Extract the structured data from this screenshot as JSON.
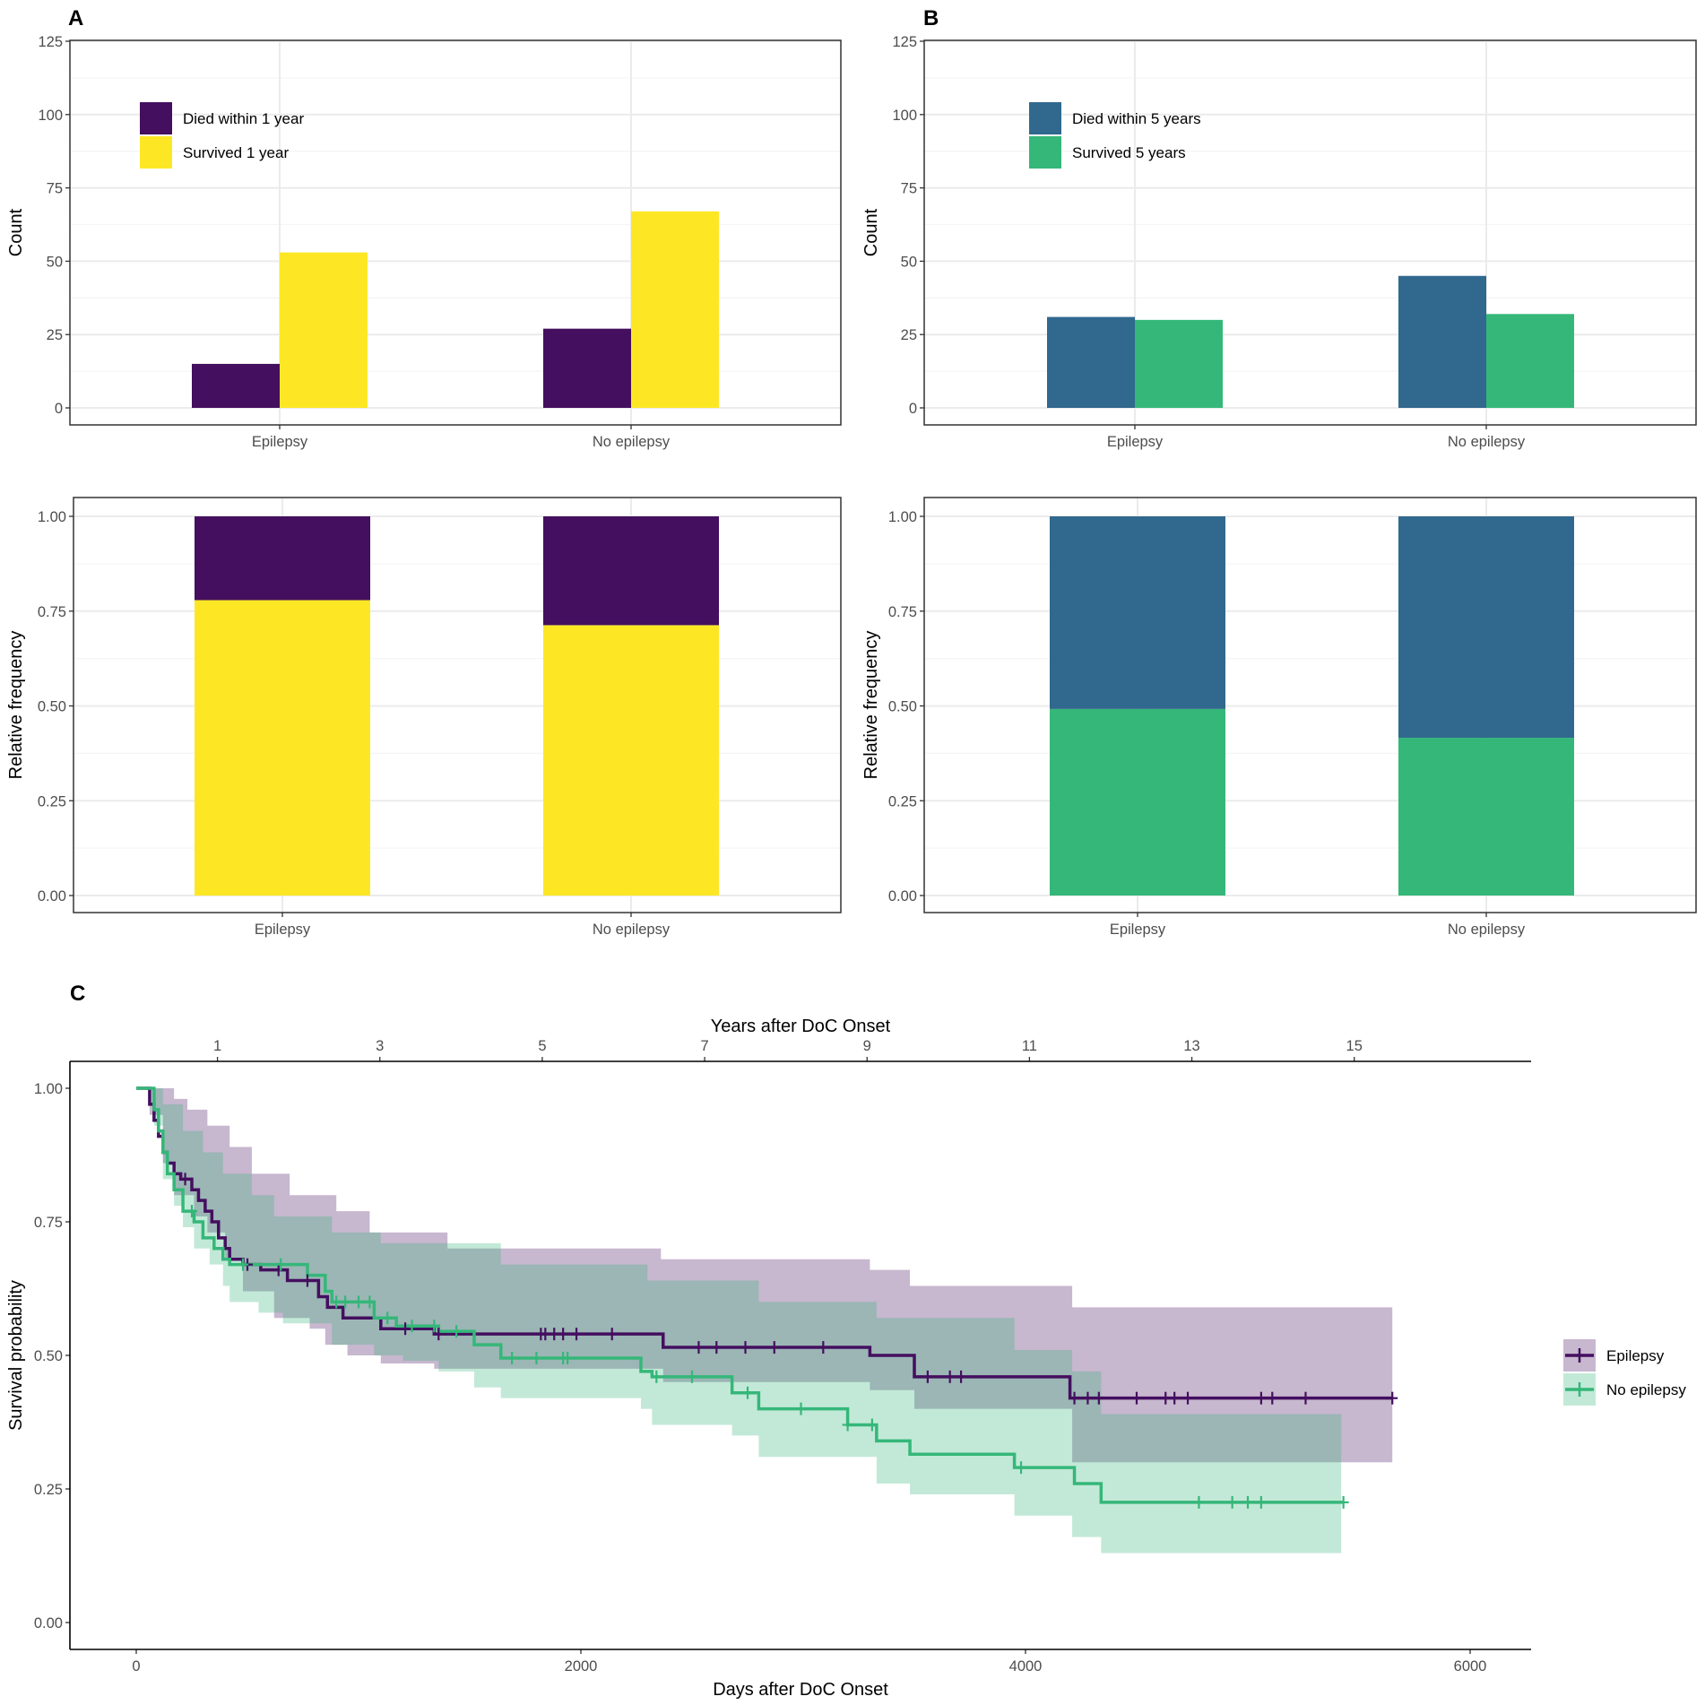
{
  "colors": {
    "died_1y": "#440F5F",
    "survived_1y": "#FDE725",
    "died_5y": "#31688E",
    "survived_5y": "#35B779",
    "epilepsy_line": "#440F5F",
    "no_epilepsy_line": "#35B779",
    "grid_major": "#EBEBEB",
    "grid_minor": "#F5F5F5",
    "panel_border": "#333333"
  },
  "panels": {
    "a_label": "A",
    "b_label": "B",
    "c_label": "C"
  },
  "chart_data": [
    {
      "id": "A-count",
      "type": "bar",
      "title": "",
      "xlabel": "",
      "ylabel": "Count",
      "ylim": [
        0,
        125
      ],
      "yticks": [
        0,
        25,
        50,
        75,
        100,
        125
      ],
      "ytick_labels": [
        "0",
        "25",
        "50",
        "75",
        "100",
        "125"
      ],
      "categories": [
        "Epilepsy",
        "No epilepsy"
      ],
      "series": [
        {
          "name": "Died within 1 year",
          "color_key": "died_1y",
          "values": [
            15,
            27
          ]
        },
        {
          "name": "Survived 1 year",
          "color_key": "survived_1y",
          "values": [
            53,
            67
          ]
        }
      ],
      "legend_position": "top-left"
    },
    {
      "id": "A-relfreq",
      "type": "bar",
      "stacked": true,
      "title": "",
      "xlabel": "",
      "ylabel": "Relative frequency",
      "ylim": [
        0,
        1
      ],
      "yticks": [
        0,
        0.25,
        0.5,
        0.75,
        1
      ],
      "ytick_labels": [
        "0.00",
        "0.25",
        "0.50",
        "0.75",
        "1.00"
      ],
      "categories": [
        "Epilepsy",
        "No epilepsy"
      ],
      "series": [
        {
          "name": "Survived 1 year",
          "color_key": "survived_1y",
          "values": [
            0.779,
            0.713
          ]
        },
        {
          "name": "Died within 1 year",
          "color_key": "died_1y",
          "values": [
            0.221,
            0.287
          ]
        }
      ]
    },
    {
      "id": "B-count",
      "type": "bar",
      "title": "",
      "xlabel": "",
      "ylabel": "Count",
      "ylim": [
        0,
        125
      ],
      "yticks": [
        0,
        25,
        50,
        75,
        100,
        125
      ],
      "ytick_labels": [
        "0",
        "25",
        "50",
        "75",
        "100",
        "125"
      ],
      "categories": [
        "Epilepsy",
        "No epilepsy"
      ],
      "series": [
        {
          "name": "Died within 5 years",
          "color_key": "died_5y",
          "values": [
            31,
            45
          ]
        },
        {
          "name": "Survived 5 years",
          "color_key": "survived_5y",
          "values": [
            30,
            32
          ]
        }
      ],
      "legend_position": "top-left"
    },
    {
      "id": "B-relfreq",
      "type": "bar",
      "stacked": true,
      "title": "",
      "xlabel": "",
      "ylabel": "Relative frequency",
      "ylim": [
        0,
        1
      ],
      "yticks": [
        0,
        0.25,
        0.5,
        0.75,
        1
      ],
      "ytick_labels": [
        "0.00",
        "0.25",
        "0.50",
        "0.75",
        "1.00"
      ],
      "categories": [
        "Epilepsy",
        "No epilepsy"
      ],
      "series": [
        {
          "name": "Survived 5 years",
          "color_key": "survived_5y",
          "values": [
            0.492,
            0.416
          ]
        },
        {
          "name": "Died within 5 years",
          "color_key": "died_5y",
          "values": [
            0.508,
            0.584
          ]
        }
      ]
    },
    {
      "id": "C-survival",
      "type": "line",
      "subtype": "kaplan-meier",
      "title": "",
      "xlabel": "Days after DoC Onset",
      "ylabel": "Survival probability",
      "x2label": "Years after DoC Onset",
      "xlim": [
        -300,
        6300
      ],
      "ylim": [
        -0.05,
        1.05
      ],
      "xticks": [
        0,
        2000,
        4000,
        6000
      ],
      "xtick_labels": [
        "0",
        "2000",
        "4000",
        "6000"
      ],
      "x2ticks": [
        1,
        3,
        5,
        7,
        9,
        11,
        13,
        15
      ],
      "x2tick_labels": [
        "1",
        "3",
        "5",
        "7",
        "9",
        "11",
        "13",
        "15"
      ],
      "days_per_year": 365.25,
      "yticks": [
        0,
        0.25,
        0.5,
        0.75,
        1
      ],
      "ytick_labels": [
        "0.00",
        "0.25",
        "0.50",
        "0.75",
        "1.00"
      ],
      "legend_position": "right",
      "series": [
        {
          "name": "Epilepsy",
          "color_key": "epilepsy_line",
          "steps": [
            [
              0,
              1.0
            ],
            [
              60,
              0.97
            ],
            [
              80,
              0.94
            ],
            [
              100,
              0.91
            ],
            [
              120,
              0.88
            ],
            [
              140,
              0.86
            ],
            [
              170,
              0.84
            ],
            [
              200,
              0.83
            ],
            [
              250,
              0.81
            ],
            [
              280,
              0.79
            ],
            [
              310,
              0.77
            ],
            [
              340,
              0.75
            ],
            [
              370,
              0.72
            ],
            [
              400,
              0.7
            ],
            [
              420,
              0.68
            ],
            [
              480,
              0.67
            ],
            [
              560,
              0.66
            ],
            [
              680,
              0.64
            ],
            [
              820,
              0.61
            ],
            [
              860,
              0.59
            ],
            [
              930,
              0.57
            ],
            [
              1100,
              0.55
            ],
            [
              1340,
              0.54
            ],
            [
              2370,
              0.515
            ],
            [
              3300,
              0.5
            ],
            [
              3500,
              0.46
            ],
            [
              4200,
              0.42
            ],
            [
              5650,
              0.42
            ]
          ],
          "censor": [
            220,
            500,
            640,
            770,
            1210,
            1360,
            1820,
            1840,
            1880,
            1920,
            1980,
            2140,
            2530,
            2610,
            2740,
            2870,
            3090,
            3560,
            3660,
            3710,
            4220,
            4280,
            4330,
            4500,
            4630,
            4670,
            4730,
            5060,
            5110,
            5260,
            5650
          ],
          "ci_upper": [
            [
              0,
              1.0
            ],
            [
              80,
              1.0
            ],
            [
              170,
              0.98
            ],
            [
              230,
              0.96
            ],
            [
              320,
              0.93
            ],
            [
              420,
              0.89
            ],
            [
              520,
              0.84
            ],
            [
              690,
              0.8
            ],
            [
              900,
              0.77
            ],
            [
              1050,
              0.73
            ],
            [
              1400,
              0.7
            ],
            [
              2360,
              0.68
            ],
            [
              3300,
              0.66
            ],
            [
              3480,
              0.63
            ],
            [
              4210,
              0.59
            ],
            [
              5650,
              0.59
            ]
          ],
          "ci_lower": [
            [
              0,
              1.0
            ],
            [
              60,
              0.95
            ],
            [
              120,
              0.86
            ],
            [
              170,
              0.8
            ],
            [
              260,
              0.76
            ],
            [
              320,
              0.73
            ],
            [
              400,
              0.68
            ],
            [
              480,
              0.62
            ],
            [
              620,
              0.57
            ],
            [
              780,
              0.55
            ],
            [
              850,
              0.52
            ],
            [
              950,
              0.5
            ],
            [
              1100,
              0.485
            ],
            [
              1340,
              0.475
            ],
            [
              2370,
              0.45
            ],
            [
              3300,
              0.435
            ],
            [
              3500,
              0.4
            ],
            [
              4210,
              0.3
            ],
            [
              5650,
              0.3
            ]
          ]
        },
        {
          "name": "No epilepsy",
          "color_key": "no_epilepsy_line",
          "steps": [
            [
              0,
              1.0
            ],
            [
              80,
              0.96
            ],
            [
              100,
              0.92
            ],
            [
              120,
              0.88
            ],
            [
              140,
              0.84
            ],
            [
              170,
              0.81
            ],
            [
              210,
              0.77
            ],
            [
              260,
              0.75
            ],
            [
              300,
              0.72
            ],
            [
              350,
              0.7
            ],
            [
              390,
              0.68
            ],
            [
              420,
              0.67
            ],
            [
              770,
              0.65
            ],
            [
              850,
              0.62
            ],
            [
              880,
              0.6
            ],
            [
              1070,
              0.57
            ],
            [
              1170,
              0.555
            ],
            [
              1360,
              0.545
            ],
            [
              1520,
              0.52
            ],
            [
              1640,
              0.495
            ],
            [
              2270,
              0.47
            ],
            [
              2320,
              0.46
            ],
            [
              2680,
              0.43
            ],
            [
              2800,
              0.4
            ],
            [
              3200,
              0.37
            ],
            [
              3330,
              0.34
            ],
            [
              3480,
              0.315
            ],
            [
              3950,
              0.29
            ],
            [
              4220,
              0.26
            ],
            [
              4340,
              0.225
            ],
            [
              5420,
              0.225
            ]
          ],
          "censor": [
            250,
            480,
            650,
            900,
            940,
            1000,
            1050,
            1130,
            1240,
            1340,
            1440,
            1690,
            1800,
            1920,
            1940,
            2340,
            2500,
            2750,
            2990,
            3200,
            3310,
            3980,
            4780,
            4930,
            5000,
            5060,
            5430
          ],
          "ci_upper": [
            [
              0,
              1.0
            ],
            [
              120,
              0.97
            ],
            [
              210,
              0.92
            ],
            [
              300,
              0.88
            ],
            [
              390,
              0.84
            ],
            [
              520,
              0.8
            ],
            [
              620,
              0.76
            ],
            [
              880,
              0.73
            ],
            [
              1100,
              0.71
            ],
            [
              1640,
              0.67
            ],
            [
              2300,
              0.64
            ],
            [
              2800,
              0.6
            ],
            [
              3330,
              0.57
            ],
            [
              3950,
              0.51
            ],
            [
              4210,
              0.47
            ],
            [
              4340,
              0.39
            ],
            [
              5420,
              0.39
            ]
          ],
          "ci_lower": [
            [
              0,
              1.0
            ],
            [
              80,
              0.93
            ],
            [
              120,
              0.83
            ],
            [
              170,
              0.78
            ],
            [
              210,
              0.74
            ],
            [
              260,
              0.7
            ],
            [
              330,
              0.67
            ],
            [
              390,
              0.63
            ],
            [
              420,
              0.6
            ],
            [
              550,
              0.58
            ],
            [
              660,
              0.56
            ],
            [
              880,
              0.52
            ],
            [
              1070,
              0.5
            ],
            [
              1200,
              0.49
            ],
            [
              1360,
              0.47
            ],
            [
              1520,
              0.44
            ],
            [
              1640,
              0.42
            ],
            [
              2270,
              0.4
            ],
            [
              2320,
              0.37
            ],
            [
              2680,
              0.35
            ],
            [
              2800,
              0.31
            ],
            [
              3330,
              0.26
            ],
            [
              3480,
              0.24
            ],
            [
              3950,
              0.2
            ],
            [
              4210,
              0.16
            ],
            [
              4340,
              0.13
            ],
            [
              5420,
              0.13
            ]
          ]
        }
      ]
    }
  ]
}
